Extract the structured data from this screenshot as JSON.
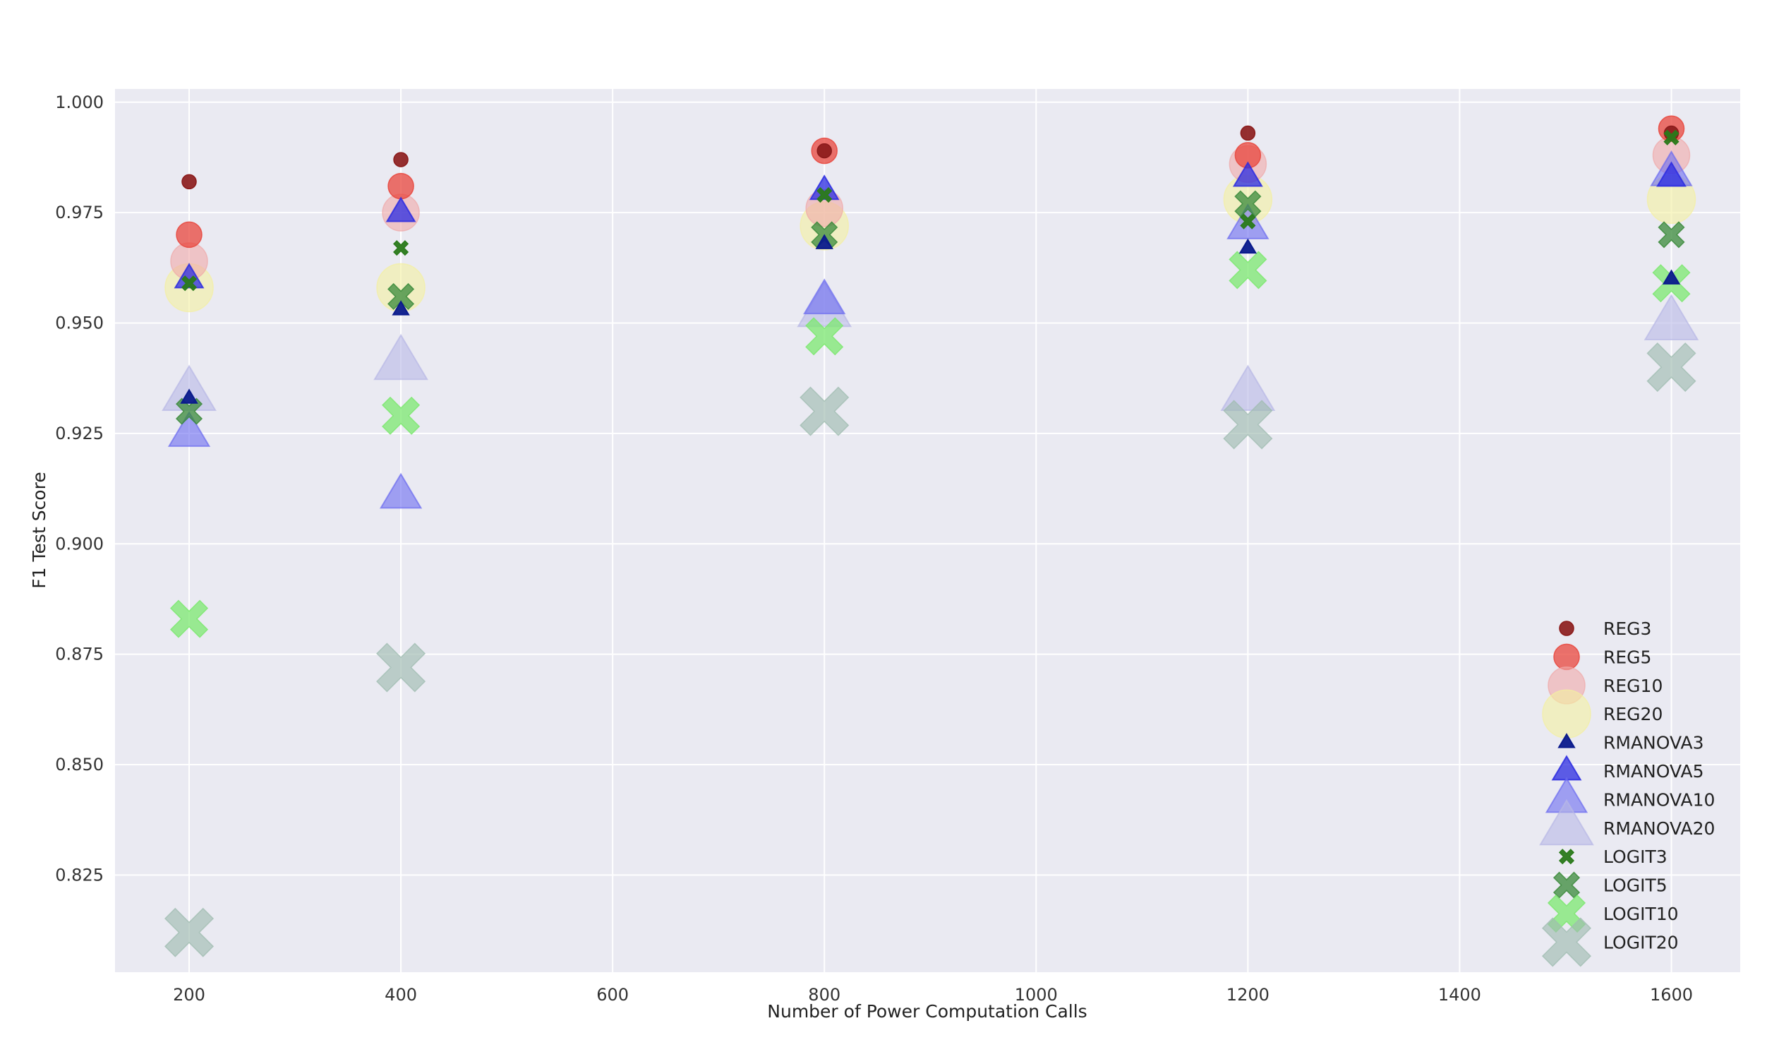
{
  "chart_data": {
    "type": "scatter",
    "title": "",
    "xlabel": "Number of Power Computation Calls",
    "ylabel": "F1 Test Score",
    "xlim": [
      130,
      1665
    ],
    "ylim": [
      0.803,
      1.003
    ],
    "x_ticks": [
      200,
      400,
      600,
      800,
      1000,
      1200,
      1400,
      1600
    ],
    "y_ticks": [
      0.825,
      0.85,
      0.875,
      0.9,
      0.925,
      0.95,
      0.975,
      1.0
    ],
    "x_tick_labels": [
      "200",
      "400",
      "600",
      "800",
      "1000",
      "1200",
      "1400",
      "1600"
    ],
    "y_tick_labels": [
      "0.825",
      "0.850",
      "0.875",
      "0.900",
      "0.925",
      "0.950",
      "0.975",
      "1.000"
    ],
    "grid": true,
    "legend_position": "bottom-right",
    "series": [
      {
        "name": "REG3",
        "marker": "circle",
        "size": "small",
        "color": "#8b1a1a",
        "opacity": 0.9,
        "x": [
          200,
          400,
          800,
          1200,
          1600
        ],
        "y": [
          0.982,
          0.987,
          0.989,
          0.993,
          0.993
        ]
      },
      {
        "name": "REG5",
        "marker": "circle",
        "size": "medium",
        "color": "#e8453c",
        "opacity": 0.75,
        "x": [
          200,
          400,
          800,
          1200,
          1600
        ],
        "y": [
          0.97,
          0.981,
          0.989,
          0.988,
          0.994
        ]
      },
      {
        "name": "REG10",
        "marker": "circle",
        "size": "large",
        "color": "#f0a8a8",
        "opacity": 0.6,
        "x": [
          200,
          400,
          800,
          1200,
          1600
        ],
        "y": [
          0.964,
          0.975,
          0.976,
          0.986,
          0.988
        ]
      },
      {
        "name": "REG20",
        "marker": "circle",
        "size": "xlarge",
        "color": "#f3f0a0",
        "opacity": 0.6,
        "x": [
          200,
          400,
          800,
          1200,
          1600
        ],
        "y": [
          0.958,
          0.958,
          0.972,
          0.978,
          0.978
        ]
      },
      {
        "name": "RMANOVA3",
        "marker": "triangle",
        "size": "small",
        "color": "#0a1a8c",
        "opacity": 0.95,
        "x": [
          200,
          400,
          800,
          1200,
          1600
        ],
        "y": [
          0.933,
          0.953,
          0.968,
          0.967,
          0.96
        ]
      },
      {
        "name": "RMANOVA5",
        "marker": "triangle",
        "size": "medium",
        "color": "#2b2be0",
        "opacity": 0.75,
        "x": [
          200,
          400,
          800,
          1200,
          1600
        ],
        "y": [
          0.96,
          0.975,
          0.98,
          0.983,
          0.983
        ]
      },
      {
        "name": "RMANOVA10",
        "marker": "triangle",
        "size": "large",
        "color": "#6b6bf0",
        "opacity": 0.6,
        "x": [
          200,
          400,
          800,
          1200,
          1600
        ],
        "y": [
          0.925,
          0.911,
          0.955,
          0.972,
          0.984
        ]
      },
      {
        "name": "RMANOVA20",
        "marker": "triangle",
        "size": "xlarge",
        "color": "#b8b8e6",
        "opacity": 0.6,
        "x": [
          200,
          400,
          800,
          1200,
          1600
        ],
        "y": [
          0.934,
          0.941,
          0.953,
          0.934,
          0.95
        ]
      },
      {
        "name": "LOGIT3",
        "marker": "x",
        "size": "small",
        "color": "#2a7a1a",
        "opacity": 0.95,
        "x": [
          200,
          400,
          800,
          1200,
          1600
        ],
        "y": [
          0.959,
          0.967,
          0.979,
          0.973,
          0.992
        ]
      },
      {
        "name": "LOGIT5",
        "marker": "x",
        "size": "medium",
        "color": "#3a8a3a",
        "opacity": 0.75,
        "x": [
          200,
          400,
          800,
          1200,
          1600
        ],
        "y": [
          0.93,
          0.956,
          0.97,
          0.977,
          0.97
        ]
      },
      {
        "name": "LOGIT10",
        "marker": "x",
        "size": "large",
        "color": "#7ce870",
        "opacity": 0.75,
        "x": [
          200,
          400,
          800,
          1200,
          1600
        ],
        "y": [
          0.883,
          0.929,
          0.947,
          0.962,
          0.959
        ]
      },
      {
        "name": "LOGIT20",
        "marker": "x",
        "size": "xlarge",
        "color": "#9fbcb0",
        "opacity": 0.65,
        "x": [
          200,
          400,
          800,
          1200,
          1600
        ],
        "y": [
          0.812,
          0.872,
          0.93,
          0.927,
          0.94
        ]
      }
    ]
  }
}
